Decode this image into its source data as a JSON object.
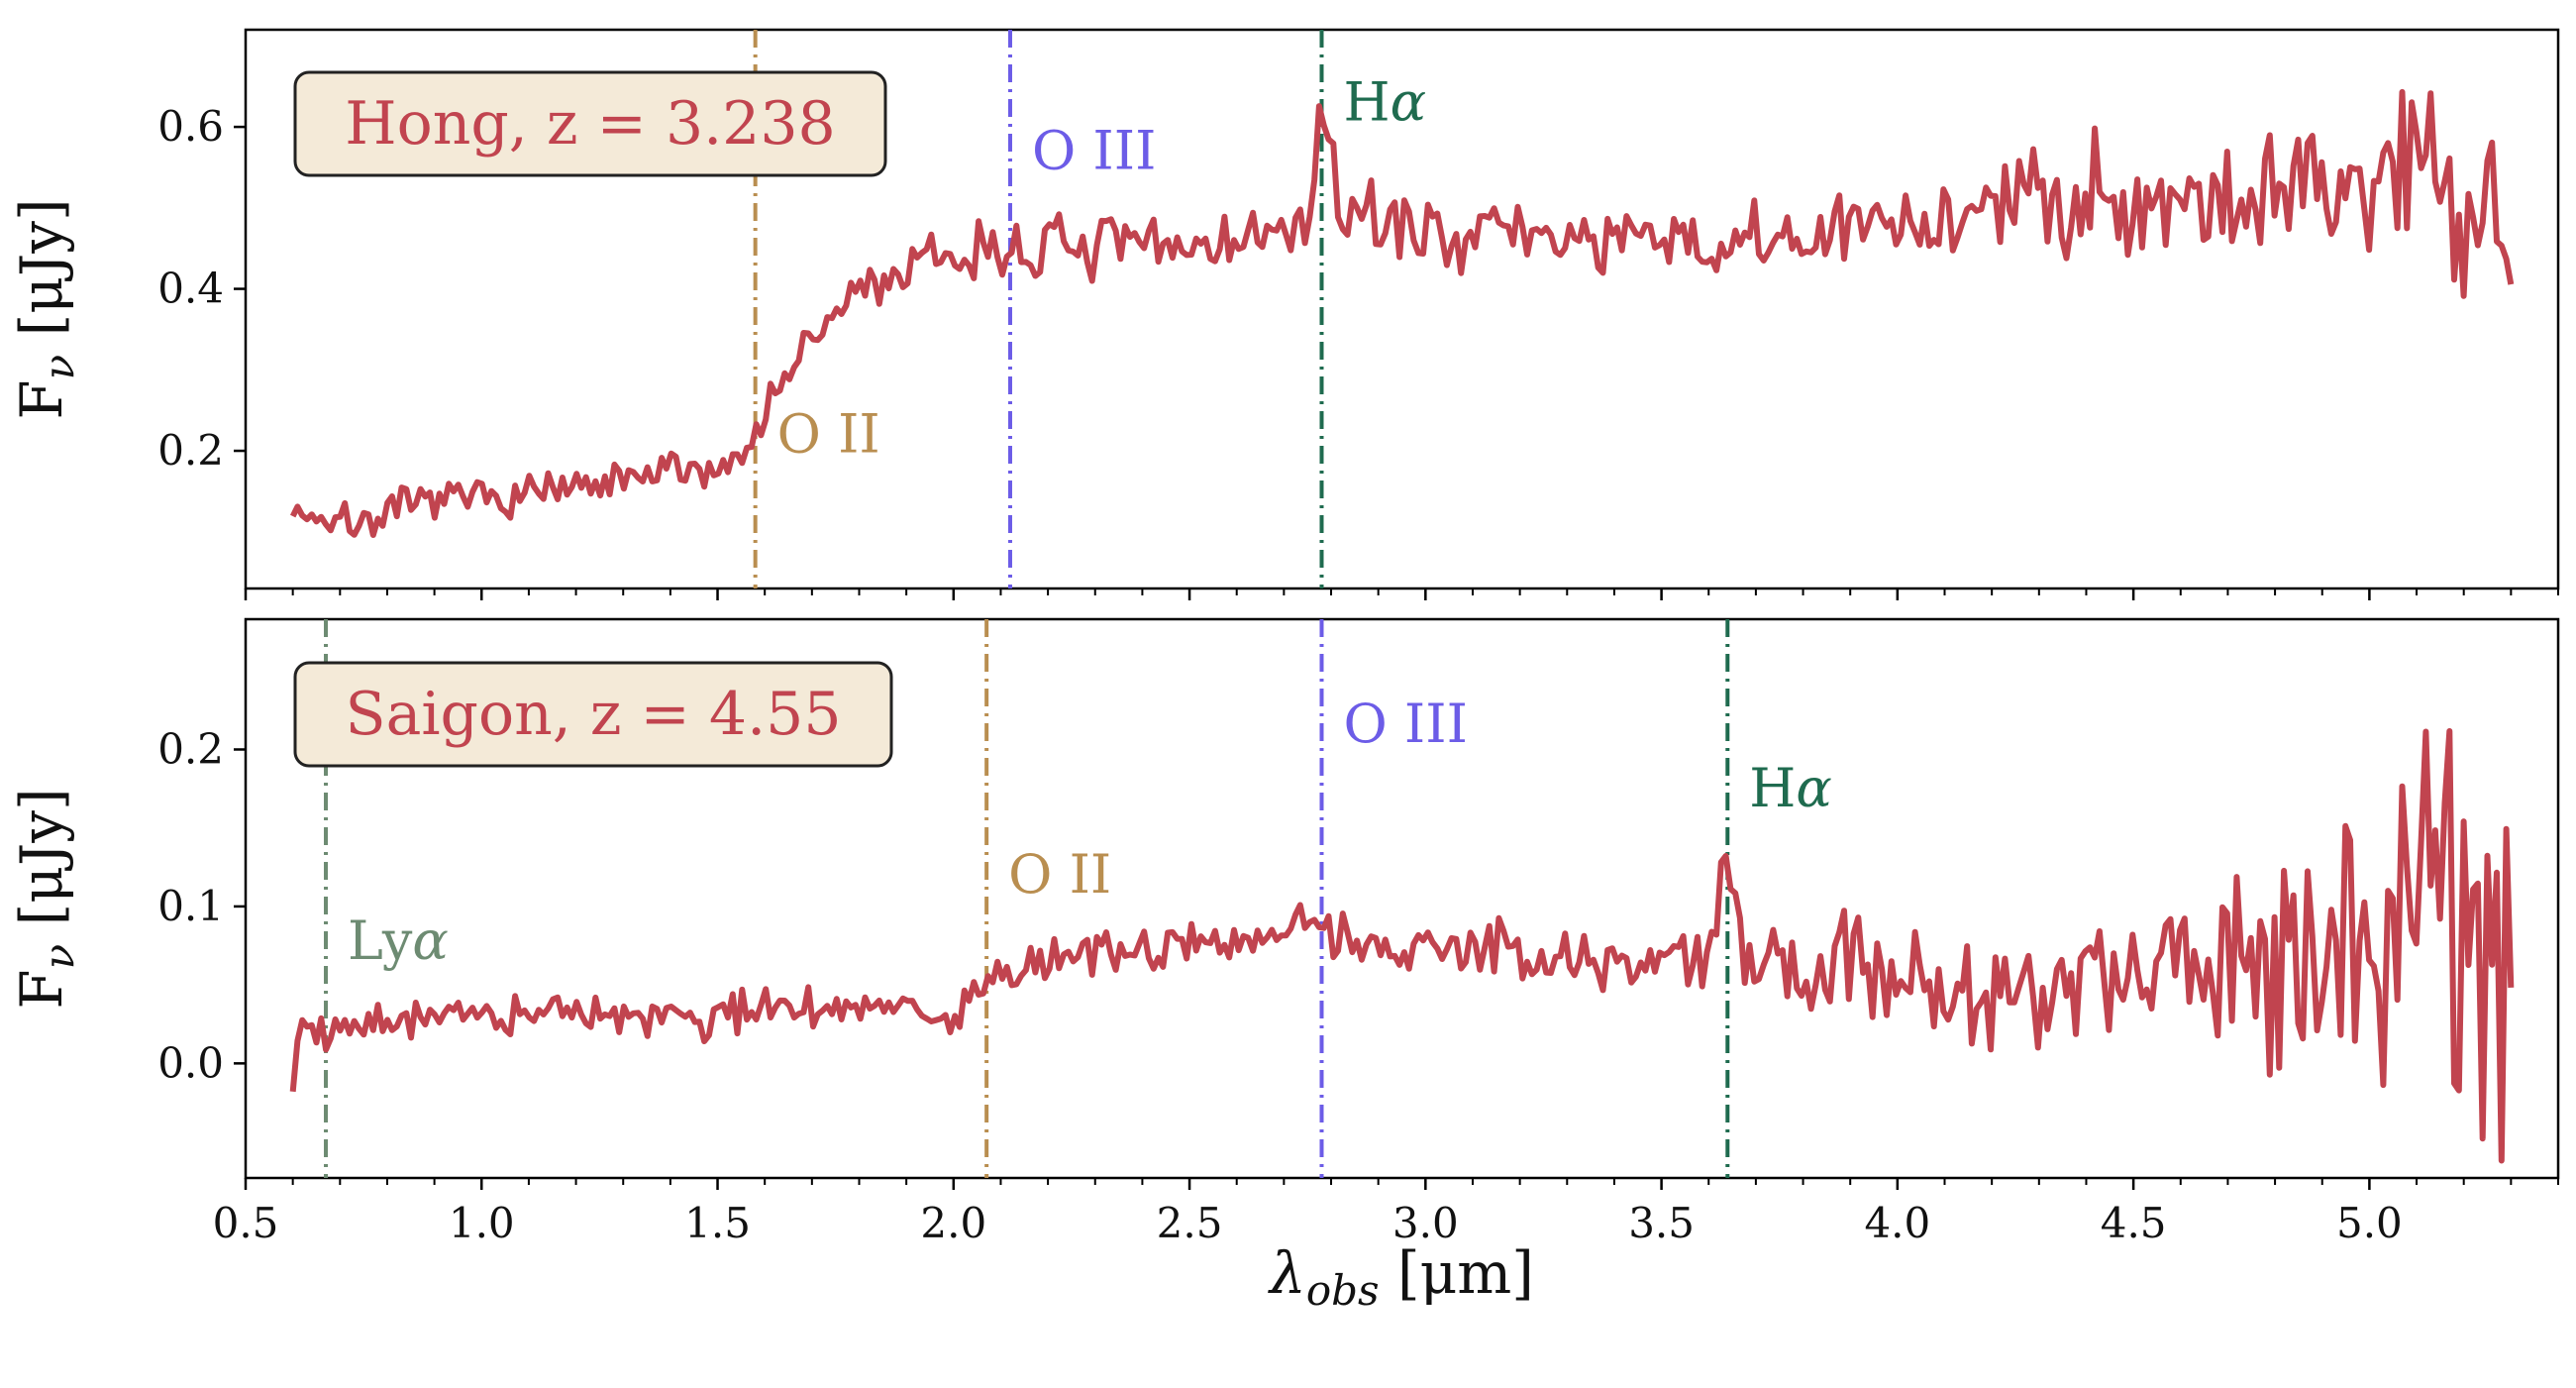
{
  "colors": {
    "spectrum": "#c1444f",
    "oii": "#b98e50",
    "oiii": "#6c5ce7",
    "halpha": "#1f6b4f",
    "lya": "#6d8b72",
    "box_fill": "#f4ead8",
    "box_edge": "#222222"
  },
  "chart_data": [
    {
      "type": "line",
      "panel": "top",
      "ylabel": "Fν [μJy]",
      "ylabel_main": "F",
      "ylabel_sub": "ν",
      "ylabel_unit": "[μJy]",
      "xlim": [
        0.5,
        5.4
      ],
      "ylim": [
        0.03,
        0.72
      ],
      "yticks": [
        0.2,
        0.4,
        0.6
      ],
      "ytick_labels": [
        "0.2",
        "0.4",
        "0.6"
      ],
      "annotation_box": "Hong, z = 3.238",
      "emission_lines": [
        {
          "name": "O II",
          "x": 1.58,
          "label_y": 0.22,
          "color_key": "oii"
        },
        {
          "name": "O III",
          "x": 2.12,
          "label_y": 0.57,
          "color_key": "oiii"
        },
        {
          "name": "Hα",
          "x": 2.78,
          "label_y": 0.63,
          "color_key": "halpha"
        }
      ],
      "series": {
        "name": "Hong spectrum",
        "anchors": [
          [
            0.6,
            0.13
          ],
          [
            0.7,
            0.11
          ],
          [
            0.8,
            0.12
          ],
          [
            0.9,
            0.14
          ],
          [
            1.0,
            0.14
          ],
          [
            1.1,
            0.15
          ],
          [
            1.2,
            0.15
          ],
          [
            1.3,
            0.16
          ],
          [
            1.4,
            0.175
          ],
          [
            1.5,
            0.18
          ],
          [
            1.55,
            0.19
          ],
          [
            1.6,
            0.25
          ],
          [
            1.65,
            0.3
          ],
          [
            1.7,
            0.33
          ],
          [
            1.75,
            0.37
          ],
          [
            1.8,
            0.4
          ],
          [
            1.9,
            0.42
          ],
          [
            2.0,
            0.44
          ],
          [
            2.1,
            0.45
          ],
          [
            2.2,
            0.45
          ],
          [
            2.4,
            0.45
          ],
          [
            2.6,
            0.46
          ],
          [
            2.74,
            0.47
          ],
          [
            2.78,
            0.6
          ],
          [
            2.82,
            0.5
          ],
          [
            3.0,
            0.47
          ],
          [
            3.2,
            0.47
          ],
          [
            3.4,
            0.46
          ],
          [
            3.6,
            0.45
          ],
          [
            3.8,
            0.46
          ],
          [
            4.0,
            0.48
          ],
          [
            4.2,
            0.5
          ],
          [
            4.4,
            0.52
          ],
          [
            4.6,
            0.51
          ],
          [
            4.8,
            0.52
          ],
          [
            5.0,
            0.53
          ],
          [
            5.1,
            0.58
          ],
          [
            5.2,
            0.52
          ],
          [
            5.3,
            0.48
          ]
        ],
        "x_min": 0.6,
        "x_max": 5.3,
        "n_points": 470,
        "seed": 7,
        "noise": [
          [
            0.6,
            0.012
          ],
          [
            1.6,
            0.012
          ],
          [
            2.0,
            0.02
          ],
          [
            3.5,
            0.02
          ],
          [
            4.5,
            0.035
          ],
          [
            4.9,
            0.05
          ],
          [
            5.3,
            0.06
          ]
        ]
      }
    },
    {
      "type": "line",
      "panel": "bottom",
      "ylabel": "Fν [μJy]",
      "ylabel_main": "F",
      "ylabel_sub": "ν",
      "ylabel_unit": "[μJy]",
      "xlabel": "λobs [μm]",
      "xlabel_main": "λ",
      "xlabel_sub": "obs",
      "xlabel_unit": "[μm]",
      "xlim": [
        0.5,
        5.4
      ],
      "ylim": [
        -0.073,
        0.283
      ],
      "xticks": [
        0.5,
        1.0,
        1.5,
        2.0,
        2.5,
        3.0,
        3.5,
        4.0,
        4.5,
        5.0
      ],
      "xtick_labels": [
        "0.5",
        "1.0",
        "1.5",
        "2.0",
        "2.5",
        "3.0",
        "3.5",
        "4.0",
        "4.5",
        "5.0"
      ],
      "yticks": [
        0.0,
        0.1,
        0.2
      ],
      "ytick_labels": [
        "0.0",
        "0.1",
        "0.2"
      ],
      "annotation_box": "Saigon, z = 4.55",
      "emission_lines": [
        {
          "name": "Lyα",
          "x": 0.67,
          "label_y": 0.078,
          "color_key": "lya"
        },
        {
          "name": "O II",
          "x": 2.07,
          "label_y": 0.12,
          "color_key": "oii"
        },
        {
          "name": "O III",
          "x": 2.78,
          "label_y": 0.216,
          "color_key": "oiii"
        },
        {
          "name": "Hα",
          "x": 3.64,
          "label_y": 0.175,
          "color_key": "halpha"
        }
      ],
      "series": {
        "name": "Saigon spectrum",
        "anchors": [
          [
            0.6,
            -0.01
          ],
          [
            0.62,
            0.025
          ],
          [
            0.7,
            0.02
          ],
          [
            0.8,
            0.03
          ],
          [
            1.0,
            0.03
          ],
          [
            1.2,
            0.032
          ],
          [
            1.4,
            0.03
          ],
          [
            1.6,
            0.033
          ],
          [
            1.8,
            0.035
          ],
          [
            2.0,
            0.03
          ],
          [
            2.07,
            0.05
          ],
          [
            2.2,
            0.065
          ],
          [
            2.4,
            0.075
          ],
          [
            2.6,
            0.075
          ],
          [
            2.78,
            0.09
          ],
          [
            2.9,
            0.075
          ],
          [
            3.2,
            0.07
          ],
          [
            3.4,
            0.065
          ],
          [
            3.6,
            0.06
          ],
          [
            3.64,
            0.135
          ],
          [
            3.68,
            0.06
          ],
          [
            3.9,
            0.06
          ],
          [
            4.1,
            0.05
          ],
          [
            4.3,
            0.05
          ],
          [
            4.5,
            0.06
          ],
          [
            4.7,
            0.06
          ],
          [
            4.9,
            0.07
          ],
          [
            5.0,
            0.08
          ],
          [
            5.1,
            0.1
          ],
          [
            5.2,
            0.12
          ],
          [
            5.3,
            0.075
          ]
        ],
        "x_min": 0.6,
        "x_max": 5.3,
        "n_points": 470,
        "seed": 19,
        "noise": [
          [
            0.6,
            0.006
          ],
          [
            2.5,
            0.007
          ],
          [
            3.5,
            0.011
          ],
          [
            4.0,
            0.017
          ],
          [
            4.5,
            0.022
          ],
          [
            4.8,
            0.04
          ],
          [
            5.1,
            0.065
          ],
          [
            5.3,
            0.07
          ]
        ]
      }
    }
  ]
}
